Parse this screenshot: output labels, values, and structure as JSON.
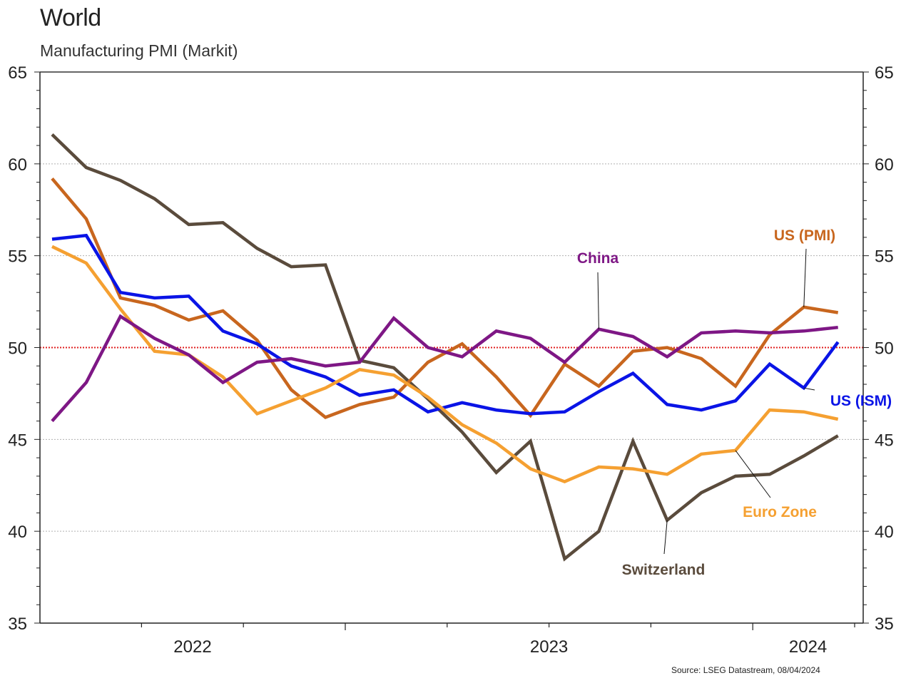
{
  "header": {
    "title": "World",
    "subtitle": "Manufacturing PMI (Markit)"
  },
  "footer": {
    "source": "Source: LSEG Datastream, 08/04/2024"
  },
  "chart_data": {
    "type": "line",
    "title": "World",
    "subtitle": "Manufacturing PMI (Markit)",
    "xlabel": "",
    "ylabel": "",
    "ylim": [
      35,
      65
    ],
    "yticks": [
      35,
      40,
      45,
      50,
      55,
      60,
      65
    ],
    "ytick_labels": [
      "35",
      "40",
      "45",
      "50",
      "55",
      "60",
      "65"
    ],
    "y_axes": "left-and-right",
    "xtick_labels": [
      "2022",
      "2023",
      "2024"
    ],
    "grid": "horizontal dotted",
    "reference_line": {
      "value": 50,
      "color": "#e02020",
      "style": "dotted"
    },
    "x": [
      "Apr 2022",
      "May 2022",
      "Jun 2022",
      "Jul 2022",
      "Aug 2022",
      "Sep 2022",
      "Oct 2022",
      "Nov 2022",
      "Dec 2022",
      "Jan 2023",
      "Feb 2023",
      "Mar 2023",
      "Apr 2023",
      "May 2023",
      "Jun 2023",
      "Jul 2023",
      "Aug 2023",
      "Sep 2023",
      "Oct 2023",
      "Nov 2023",
      "Dec 2023",
      "Jan 2024",
      "Feb 2024",
      "Mar 2024"
    ],
    "series": [
      {
        "name": "Switzerland",
        "color": "#5a4b3c",
        "values": [
          61.6,
          59.8,
          59.1,
          58.1,
          56.7,
          56.8,
          55.4,
          54.4,
          54.5,
          49.3,
          48.9,
          47.2,
          45.4,
          43.2,
          44.9,
          38.5,
          40.0,
          44.9,
          40.6,
          42.1,
          43.0,
          43.1,
          44.1,
          45.2
        ]
      },
      {
        "name": "US (PMI)",
        "color": "#c8661e",
        "values": [
          59.2,
          57.0,
          52.7,
          52.3,
          51.5,
          52.0,
          50.4,
          47.7,
          46.2,
          46.9,
          47.3,
          49.2,
          50.2,
          48.4,
          46.3,
          49.1,
          47.9,
          49.8,
          50.0,
          49.4,
          47.9,
          50.7,
          52.2,
          51.9
        ]
      },
      {
        "name": "US (ISM)",
        "color": "#0a14e6",
        "values": [
          55.9,
          56.1,
          53.0,
          52.7,
          52.8,
          50.9,
          50.2,
          49.0,
          48.4,
          47.4,
          47.7,
          46.5,
          47.0,
          46.6,
          46.4,
          46.5,
          47.6,
          48.6,
          46.9,
          46.6,
          47.1,
          49.1,
          47.8,
          50.3
        ]
      },
      {
        "name": "Euro Zone",
        "color": "#f5a031",
        "values": [
          55.5,
          54.6,
          52.1,
          49.8,
          49.6,
          48.4,
          46.4,
          47.1,
          47.8,
          48.8,
          48.5,
          47.3,
          45.8,
          44.8,
          43.4,
          42.7,
          43.5,
          43.4,
          43.1,
          44.2,
          44.4,
          46.6,
          46.5,
          46.1
        ]
      },
      {
        "name": "China",
        "color": "#7e1785",
        "values": [
          46.0,
          48.1,
          51.7,
          50.5,
          49.6,
          48.1,
          49.2,
          49.4,
          49.0,
          49.2,
          51.6,
          50.0,
          49.5,
          50.9,
          50.5,
          49.2,
          51.0,
          50.6,
          49.5,
          50.8,
          50.9,
          50.8,
          50.9,
          51.1
        ]
      }
    ],
    "annotations": [
      {
        "text": "China",
        "series": "China",
        "anchor_index": 16,
        "color": "#7e1785"
      },
      {
        "text": "US (PMI)",
        "series": "US (PMI)",
        "anchor_index": 22,
        "color": "#c8661e"
      },
      {
        "text": "US (ISM)",
        "series": "US (ISM)",
        "anchor_index": 22,
        "color": "#0a14e6"
      },
      {
        "text": "Euro Zone",
        "series": "Euro Zone",
        "anchor_index": 20,
        "color": "#f5a031"
      },
      {
        "text": "Switzerland",
        "series": "Switzerland",
        "anchor_index": 18,
        "color": "#5a4b3c"
      }
    ]
  }
}
